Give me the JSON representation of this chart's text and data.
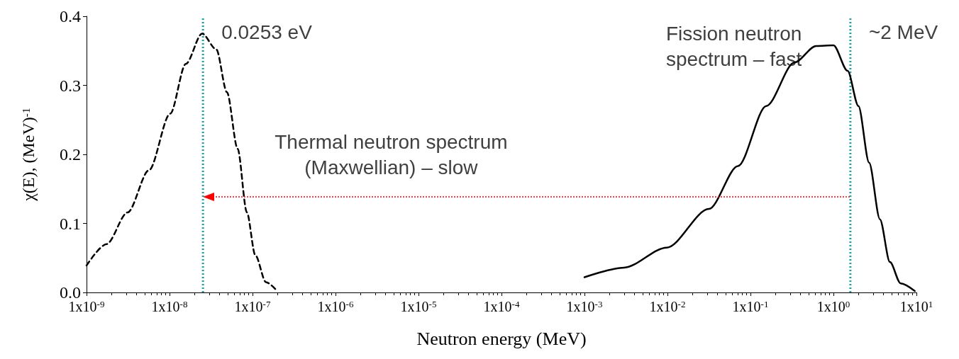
{
  "chart_data": {
    "type": "line",
    "xlabel": "Neutron energy (MeV)",
    "ylabel": "χ(E), (MeV)$^{-1}$",
    "log": "x",
    "xlim": [
      1e-09,
      10
    ],
    "xticks": [
      {
        "value": 1e-09,
        "label": "1x10$^{-9}$"
      },
      {
        "value": 1e-08,
        "label": "1x10$^{-8}$"
      },
      {
        "value": 1e-07,
        "label": "1x10$^{-7}$"
      },
      {
        "value": 1e-06,
        "label": "1x10$^{-6}$"
      },
      {
        "value": 1e-05,
        "label": "1x10$^{-5}$"
      },
      {
        "value": 0.0001,
        "label": "1x10$^{-4}$"
      },
      {
        "value": 0.001,
        "label": "1x10$^{-3}$"
      },
      {
        "value": 0.01,
        "label": "1x10$^{-2}$"
      },
      {
        "value": 0.1,
        "label": "1x10$^{-1}$"
      },
      {
        "value": 1,
        "label": "1x10$^{0}$"
      },
      {
        "value": 10,
        "label": "1x10$^{1}$"
      }
    ],
    "ylim": [
      0,
      0.4
    ],
    "yticks": [
      {
        "value": 0,
        "label": "0.0"
      },
      {
        "value": 0.1,
        "label": "0.1"
      },
      {
        "value": 0.2,
        "label": "0.2"
      },
      {
        "value": 0.3,
        "label": "0.3"
      },
      {
        "value": 0.4,
        "label": "0.4"
      }
    ],
    "grid": false,
    "marker": "none",
    "series": [
      {
        "color": "#000000",
        "line_style": "dashed",
        "x": [
          1e-09,
          1.74e-09,
          3.13e-09,
          5.65e-09,
          1.02e-08,
          1.57e-08,
          2.47e-08,
          3.66e-08,
          4.92e-08,
          6.62e-08,
          8.55e-08,
          1.08e-07,
          1.45e-07,
          1.95e-07
        ],
        "values": [
          0.039,
          0.07,
          0.116,
          0.177,
          0.259,
          0.331,
          0.375,
          0.352,
          0.29,
          0.208,
          0.116,
          0.054,
          0.015,
          0.003
        ]
      },
      {
        "color": "#000000",
        "line_style": "solid",
        "x": [
          0.001,
          0.003,
          0.0098,
          0.0316,
          0.0708,
          0.155,
          0.339,
          0.617,
          1.0,
          1.48,
          2.0,
          2.69,
          3.63,
          4.79,
          6.46,
          9.55
        ],
        "values": [
          0.022,
          0.036,
          0.065,
          0.121,
          0.183,
          0.27,
          0.333,
          0.357,
          0.358,
          0.321,
          0.27,
          0.188,
          0.106,
          0.044,
          0.013,
          0.002
        ]
      }
    ],
    "ref_lines": [
      {
        "axis": "x",
        "value": 2.53e-08,
        "label": "0.0253 eV",
        "color": "#1aa3a3",
        "line_style": "dotted"
      },
      {
        "axis": "x",
        "value": 1.6,
        "label": "~2 MeV",
        "color": "#1aa3a3",
        "line_style": "dotted"
      }
    ],
    "annotations": [
      "Fission neutron spectrum – fast",
      "Thermal neutron spectrum (Maxwellian) – slow"
    ]
  }
}
